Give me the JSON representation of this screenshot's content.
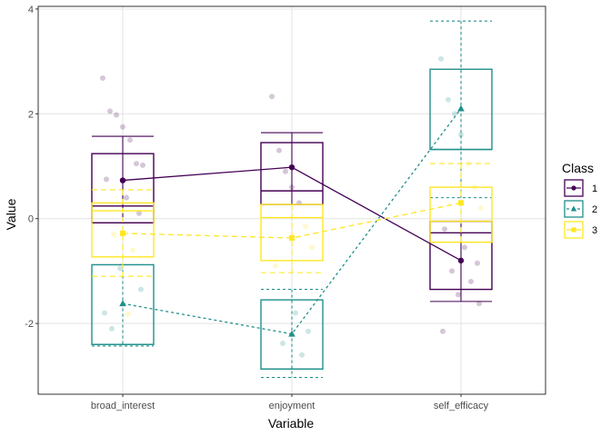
{
  "chart_data": {
    "type": "line",
    "xlabel": "Variable",
    "ylabel": "Value",
    "categories": [
      "broad_interest",
      "enjoyment",
      "self_efficacy"
    ],
    "ylim": [
      -3.35,
      4.05
    ],
    "yticks": [
      -2,
      0,
      2,
      4
    ],
    "grid": true,
    "legend": {
      "title": "Class",
      "placement": "right"
    },
    "series": [
      {
        "name": "1",
        "color": "#440154",
        "linestyle": "solid",
        "marker": "circle",
        "values": [
          0.73,
          0.98,
          -0.8
        ],
        "boxes": [
          {
            "q1": -0.08,
            "q2": 0.24,
            "q3": 1.24,
            "lower": -0.08,
            "upper": 1.57
          },
          {
            "q1": 0.27,
            "q2": 0.53,
            "q3": 1.45,
            "lower": 0.27,
            "upper": 1.64
          },
          {
            "q1": -1.35,
            "q2": -0.27,
            "q3": -0.05,
            "lower": -1.58,
            "upper": -0.05
          }
        ]
      },
      {
        "name": "2",
        "color": "#21908C",
        "linestyle": "dotted",
        "marker": "triangle",
        "values": [
          -1.62,
          -2.2,
          2.1
        ],
        "boxes": [
          {
            "q1": -2.4,
            "q2": -2.4,
            "q3": -0.88,
            "lower": -2.43,
            "upper": -0.88
          },
          {
            "q1": -2.87,
            "q2": -2.87,
            "q3": -1.55,
            "lower": -3.03,
            "upper": -1.35
          },
          {
            "q1": 1.32,
            "q2": 1.32,
            "q3": 2.85,
            "lower": 0.4,
            "upper": 3.77
          }
        ]
      },
      {
        "name": "3",
        "color": "#FDE725",
        "linestyle": "dashed",
        "marker": "square",
        "values": [
          -0.28,
          -0.37,
          0.3
        ],
        "boxes": [
          {
            "q1": -0.73,
            "q2": 0.15,
            "q3": 0.3,
            "lower": -1.1,
            "upper": 0.55
          },
          {
            "q1": -0.8,
            "q2": 0.02,
            "q3": 0.27,
            "lower": -1.03,
            "upper": 0.27
          },
          {
            "q1": -0.45,
            "q2": -0.05,
            "q3": 0.6,
            "lower": -0.45,
            "upper": 1.05
          }
        ]
      }
    ],
    "jitter_points": {
      "broad_interest": [
        {
          "v": 2.68,
          "s": 0
        },
        {
          "v": 2.05,
          "s": 0
        },
        {
          "v": 1.98,
          "s": 0
        },
        {
          "v": 1.75,
          "s": 0
        },
        {
          "v": 1.5,
          "s": 0
        },
        {
          "v": 1.05,
          "s": 0
        },
        {
          "v": 1.02,
          "s": 0
        },
        {
          "v": 0.75,
          "s": 0
        },
        {
          "v": 0.4,
          "s": 0
        },
        {
          "v": 0.1,
          "s": 0
        },
        {
          "v": -0.3,
          "s": 2
        },
        {
          "v": -0.6,
          "s": 2
        },
        {
          "v": -0.95,
          "s": 1
        },
        {
          "v": -1.35,
          "s": 1
        },
        {
          "v": -1.8,
          "s": 1
        },
        {
          "v": -1.82,
          "s": 2
        },
        {
          "v": -2.1,
          "s": 1
        }
      ],
      "enjoyment": [
        {
          "v": 2.33,
          "s": 0
        },
        {
          "v": 1.3,
          "s": 0
        },
        {
          "v": 0.9,
          "s": 0
        },
        {
          "v": 0.6,
          "s": 0
        },
        {
          "v": 0.3,
          "s": 0
        },
        {
          "v": -0.15,
          "s": 2
        },
        {
          "v": -0.55,
          "s": 2
        },
        {
          "v": -0.9,
          "s": 2
        },
        {
          "v": -1.8,
          "s": 1
        },
        {
          "v": -2.15,
          "s": 1
        },
        {
          "v": -2.38,
          "s": 1
        },
        {
          "v": -2.6,
          "s": 1
        }
      ],
      "self_efficacy": [
        {
          "v": 3.05,
          "s": 1
        },
        {
          "v": 2.27,
          "s": 1
        },
        {
          "v": 2.0,
          "s": 1
        },
        {
          "v": 1.6,
          "s": 1
        },
        {
          "v": 1.05,
          "s": 2
        },
        {
          "v": 0.6,
          "s": 2
        },
        {
          "v": 0.2,
          "s": 2
        },
        {
          "v": -0.2,
          "s": 0
        },
        {
          "v": -0.55,
          "s": 0
        },
        {
          "v": -0.85,
          "s": 0
        },
        {
          "v": -1.0,
          "s": 0
        },
        {
          "v": -1.2,
          "s": 0
        },
        {
          "v": -1.45,
          "s": 0
        },
        {
          "v": -1.62,
          "s": 0
        },
        {
          "v": -2.15,
          "s": 0
        }
      ]
    }
  }
}
